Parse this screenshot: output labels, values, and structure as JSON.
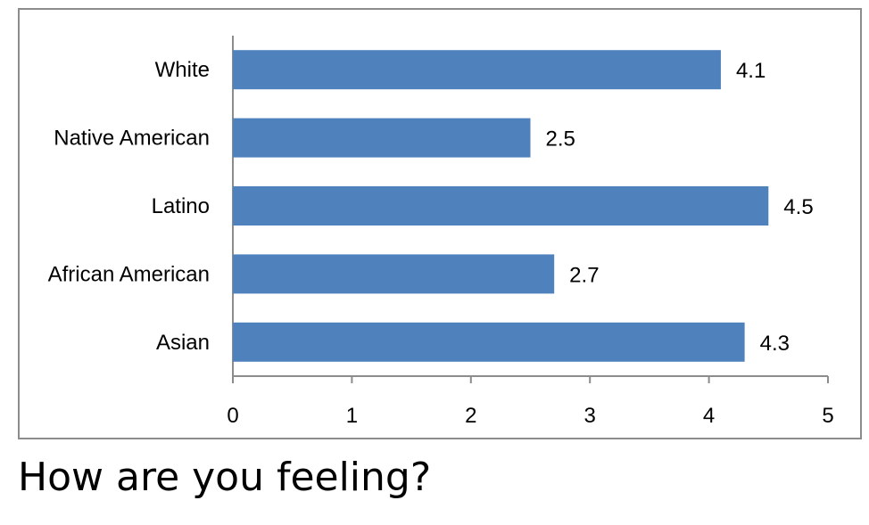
{
  "chart_data": {
    "type": "bar",
    "orientation": "horizontal",
    "categories": [
      "White",
      "Native American",
      "Latino",
      "African American",
      "Asian"
    ],
    "values": [
      4.1,
      2.5,
      4.5,
      2.7,
      4.3
    ],
    "data_labels": [
      "4.1",
      "2.5",
      "4.5",
      "2.7",
      "4.3"
    ],
    "xticks": [
      "0",
      "1",
      "2",
      "3",
      "4",
      "5"
    ],
    "xlim": [
      0,
      5
    ],
    "title": "",
    "xlabel": "",
    "ylabel": "",
    "grid": false,
    "legend": "none",
    "bar_color": "#4f81bd",
    "axis_color": "#8c8c8c"
  },
  "caption": "How are you feeling?"
}
